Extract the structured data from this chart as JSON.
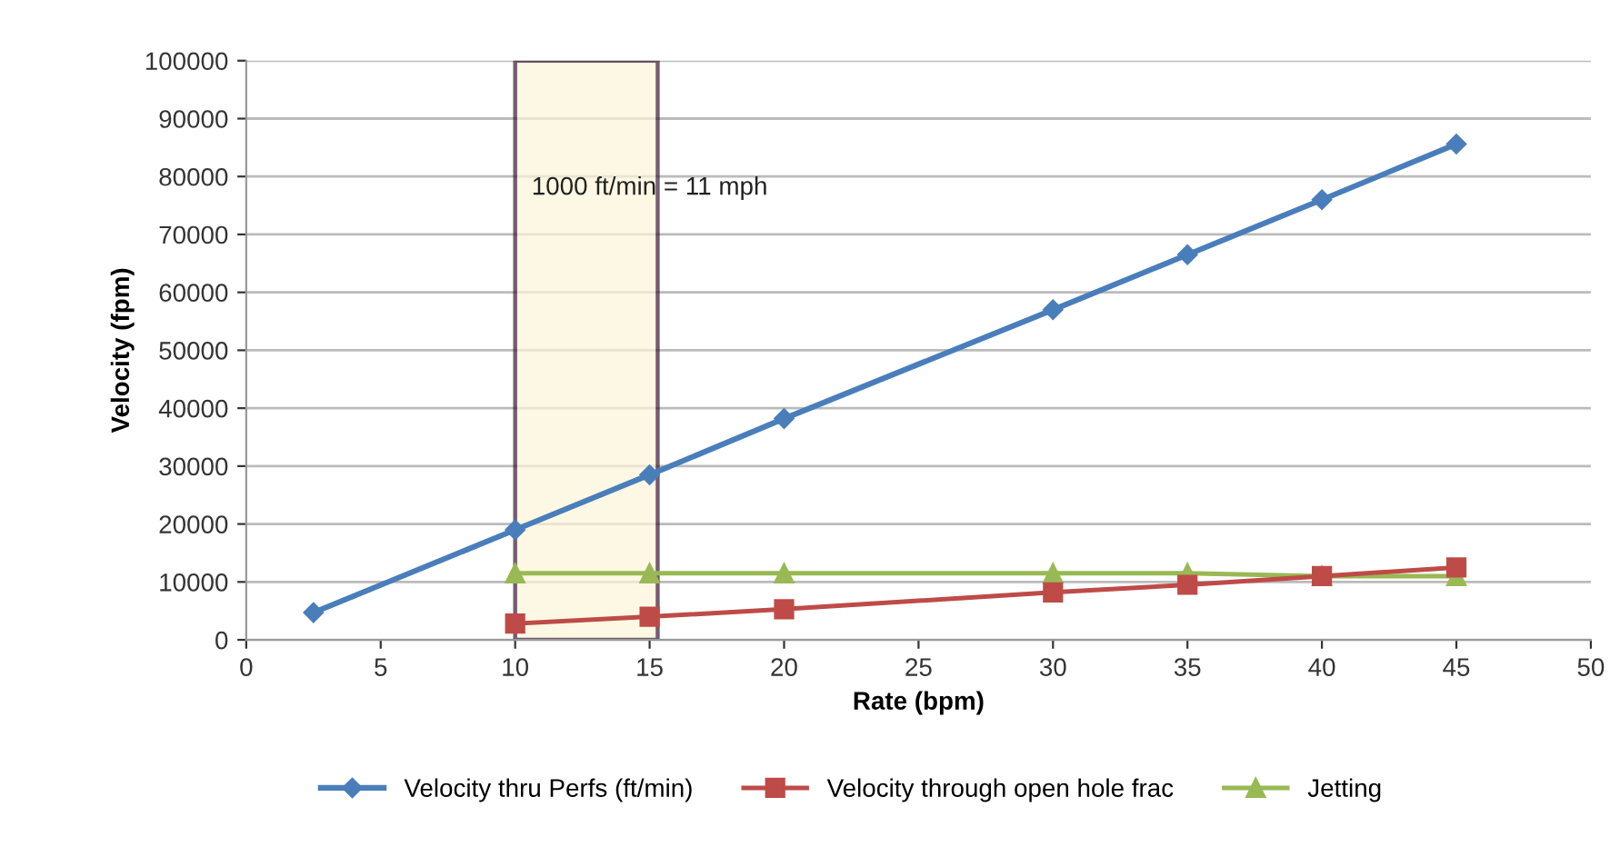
{
  "chart_data": {
    "type": "line",
    "xlabel": "Rate (bpm)",
    "ylabel": "Velocity (fpm)",
    "xlim": [
      0,
      50
    ],
    "xticks": [
      0,
      5,
      10,
      15,
      20,
      25,
      30,
      35,
      40,
      45,
      50
    ],
    "ylim": [
      0,
      100000
    ],
    "yticks": [
      0,
      10000,
      20000,
      30000,
      40000,
      50000,
      60000,
      70000,
      80000,
      90000,
      100000
    ],
    "grid": "y",
    "legend": "bottom",
    "line_style": "solid",
    "series": [
      {
        "name": "Velocity thru Perfs (ft/min)",
        "color": "#4a7ebb",
        "marker": "diamond",
        "x": [
          2.5,
          10,
          15,
          20,
          30,
          35,
          40,
          45
        ],
        "values": [
          4700,
          19000,
          28500,
          38200,
          57000,
          66500,
          76000,
          85600
        ]
      },
      {
        "name": "Velocity through open hole frac",
        "color": "#be4b48",
        "marker": "square",
        "x": [
          10,
          15,
          20,
          30,
          35,
          40,
          45
        ],
        "values": [
          2800,
          4000,
          5300,
          8200,
          9500,
          11000,
          12500
        ]
      },
      {
        "name": "Jetting",
        "color": "#98b954",
        "marker": "triangle",
        "x": [
          10,
          15,
          20,
          30,
          35,
          40,
          45
        ],
        "values": [
          11500,
          11500,
          11500,
          11500,
          11500,
          11000,
          11000
        ]
      }
    ],
    "bands": [
      {
        "axis": "x",
        "from": 10,
        "to": 15.3,
        "color": "#fdf6d8"
      }
    ],
    "annotations": [
      {
        "text": "1000 ft/min = 11 mph",
        "x": 15,
        "y": 78000
      }
    ]
  }
}
